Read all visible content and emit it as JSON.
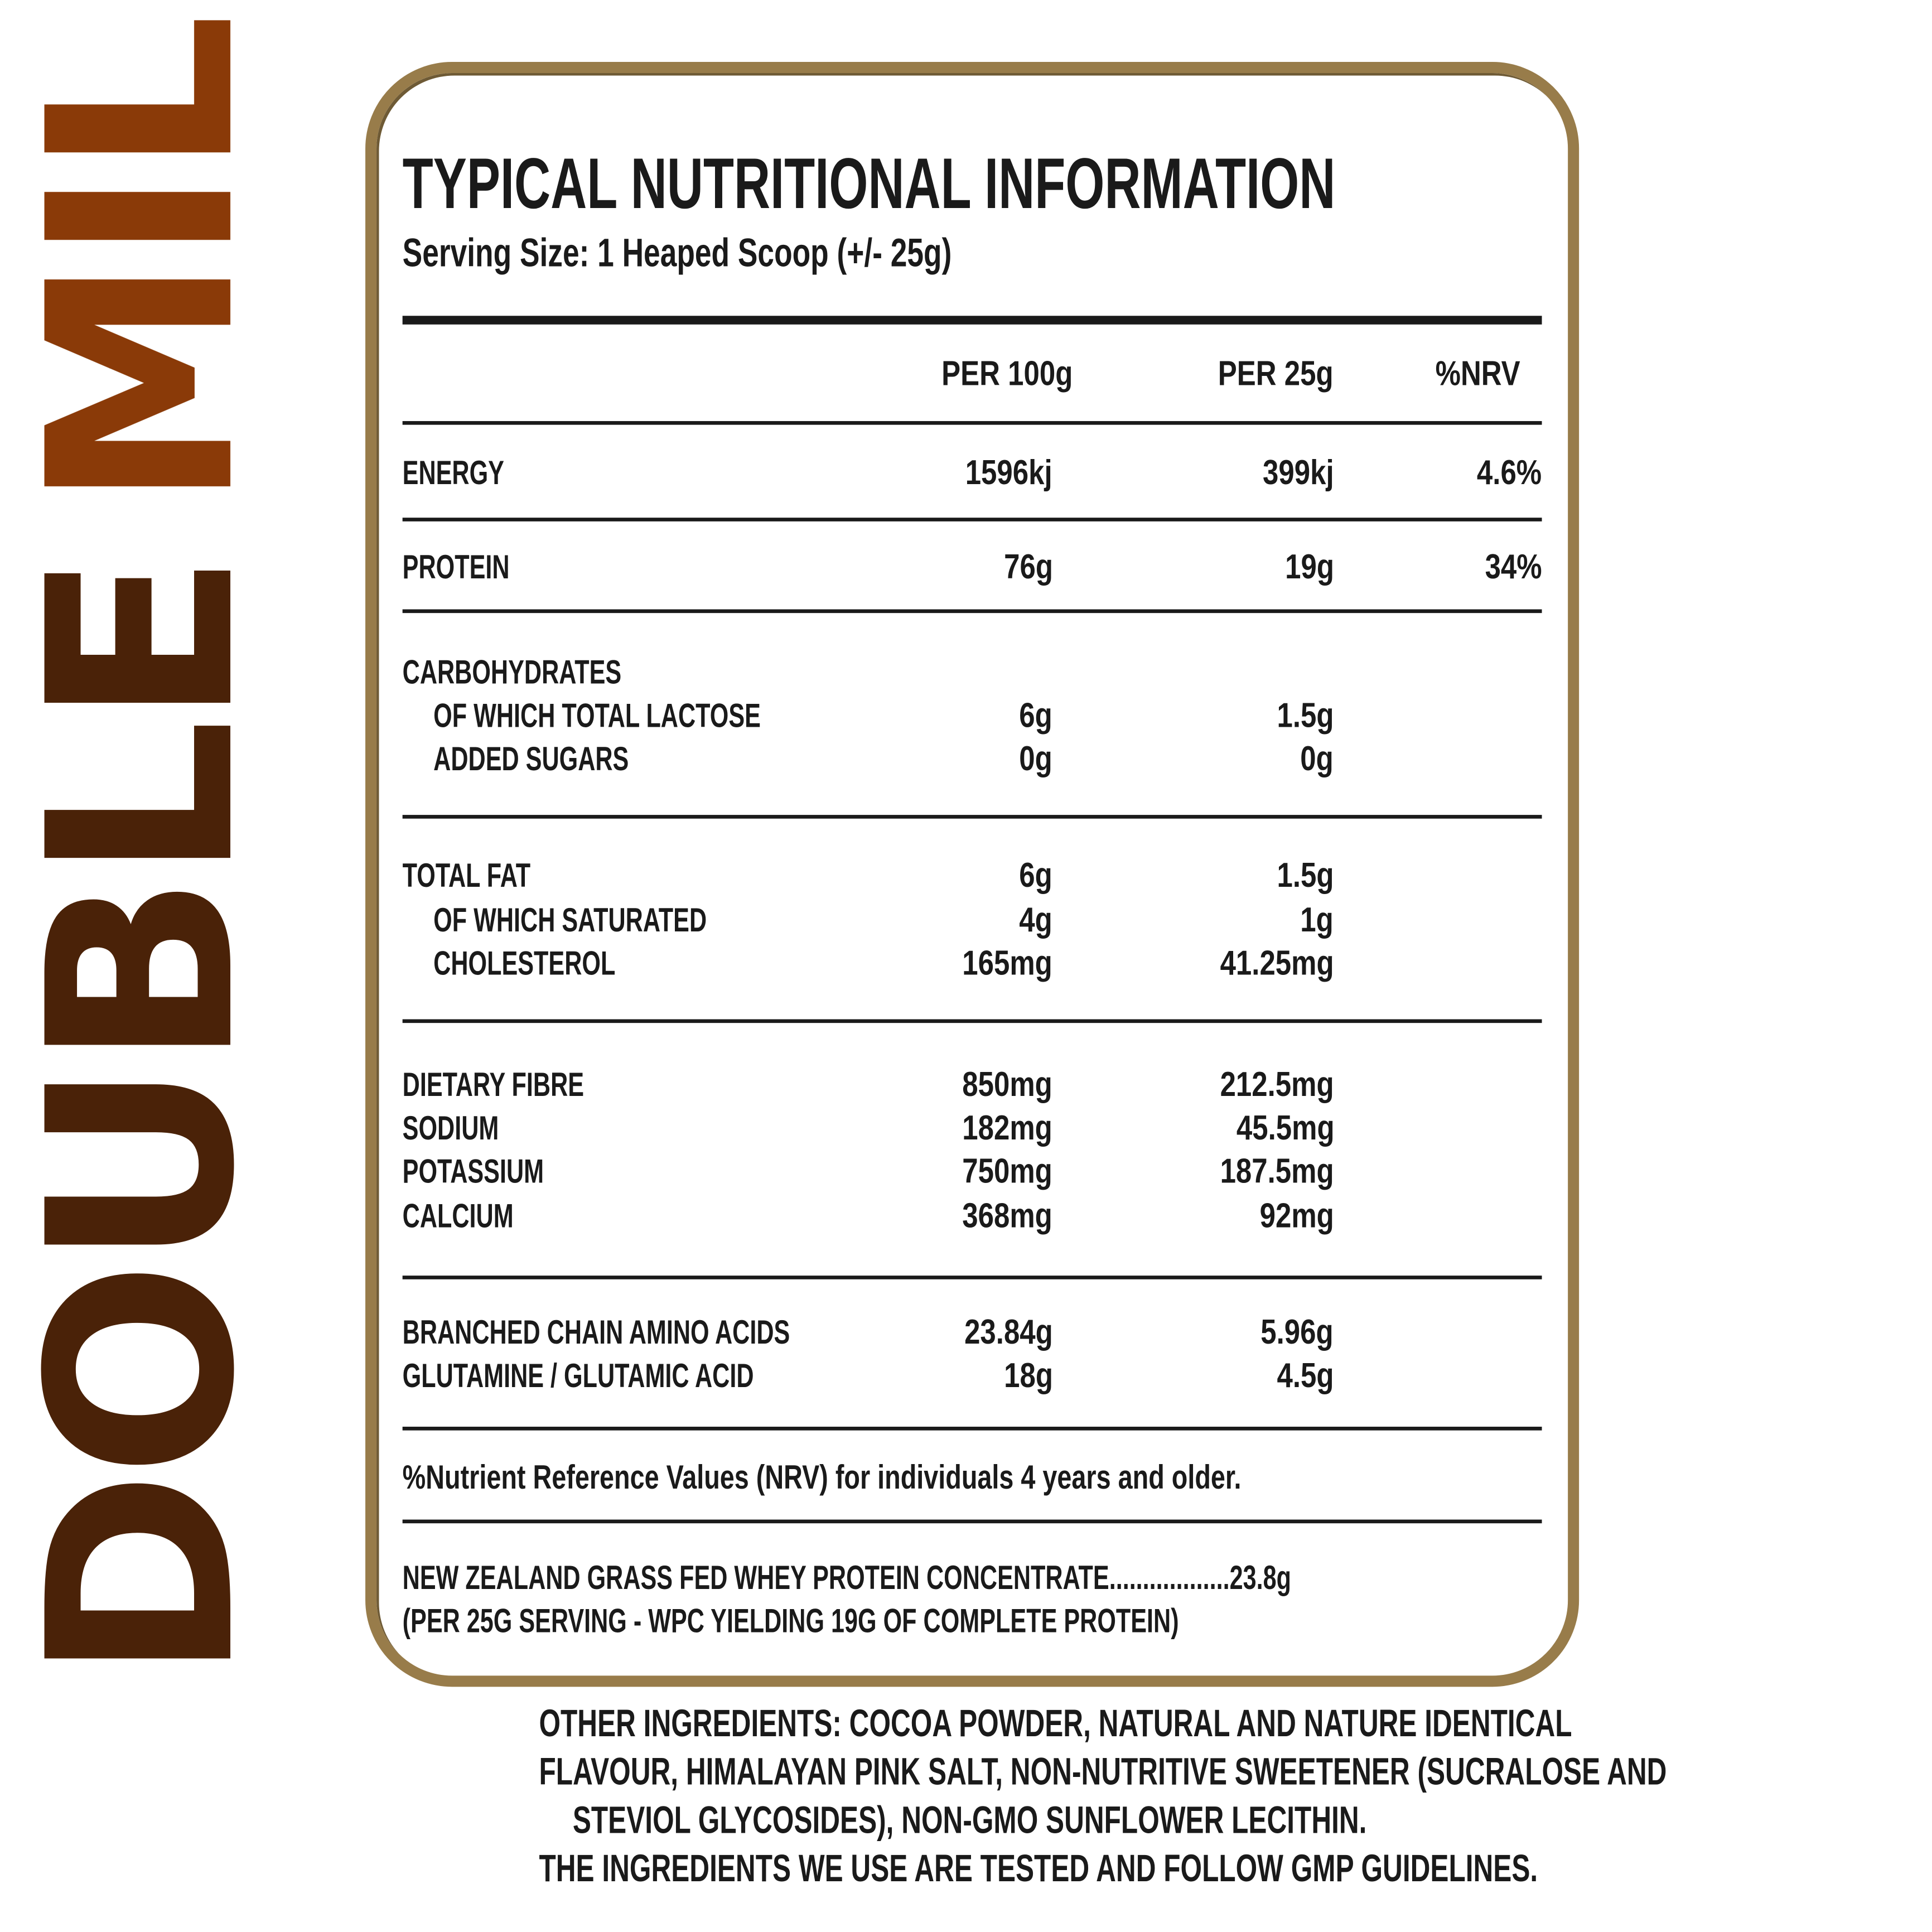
{
  "flavour": {
    "word1": "DOUBLE",
    "word2": "MILK CHOCOLATE",
    "color1": "#4a2208",
    "color2": "#8a3a08"
  },
  "panel": {
    "title": "TYPICAL NUTRITIONAL INFORMATION",
    "serving": "Serving Size: 1 Heaped Scoop (+/- 25g)",
    "border_color": "#987c4a",
    "headers": {
      "per100": "PER 100g",
      "per25": "PER 25g",
      "nrv": "%NRV"
    },
    "rows": [
      {
        "label": "ENERGY",
        "per100": "1596kj",
        "per25": "399kj",
        "nrv": "4.6%"
      },
      {
        "label": "PROTEIN",
        "per100": "76g",
        "per25": "19g",
        "nrv": "34%"
      },
      {
        "label": "CARBOHYDRATES",
        "per100": "",
        "per25": ""
      },
      {
        "label": "OF WHICH TOTAL LACTOSE",
        "per100": "6g",
        "per25": "1.5g"
      },
      {
        "label": "ADDED SUGARS",
        "per100": "0g",
        "per25": "0g"
      },
      {
        "label": "TOTAL FAT",
        "per100": "6g",
        "per25": "1.5g"
      },
      {
        "label": "OF WHICH SATURATED",
        "per100": "4g",
        "per25": "1g"
      },
      {
        "label": "CHOLESTEROL",
        "per100": "165mg",
        "per25": "41.25mg"
      },
      {
        "label": "DIETARY FIBRE",
        "per100": "850mg",
        "per25": "212.5mg"
      },
      {
        "label": "SODIUM",
        "per100": "182mg",
        "per25": "45.5mg"
      },
      {
        "label": "POTASSIUM",
        "per100": "750mg",
        "per25": "187.5mg"
      },
      {
        "label": "CALCIUM",
        "per100": "368mg",
        "per25": "92mg"
      },
      {
        "label": "BRANCHED CHAIN AMINO ACIDS",
        "per100": "23.84g",
        "per25": "5.96g"
      },
      {
        "label": "GLUTAMINE / GLUTAMIC ACID",
        "per100": "18g",
        "per25": "4.5g"
      }
    ],
    "footnote": "%Nutrient Reference Values (NRV) for individuals 4 years and older.",
    "wpc_line": "NEW ZEALAND GRASS FED WHEY PROTEIN CONCENTRATE..................23.8g",
    "wpc_note": "(PER 25G SERVING - WPC YIELDING 19G OF COMPLETE PROTEIN)"
  },
  "other_ingredients": [
    "OTHER INGREDIENTS: COCOA POWDER, NATURAL AND NATURE IDENTICAL",
    "FLAVOUR, HIMALAYAN PINK SALT, NON-NUTRITIVE SWEETENER (SUCRALOSE AND",
    "STEVIOL GLYCOSIDES), NON-GMO SUNFLOWER LECITHIN.",
    "THE INGREDIENTS WE USE ARE TESTED AND FOLLOW GMP GUIDELINES."
  ]
}
